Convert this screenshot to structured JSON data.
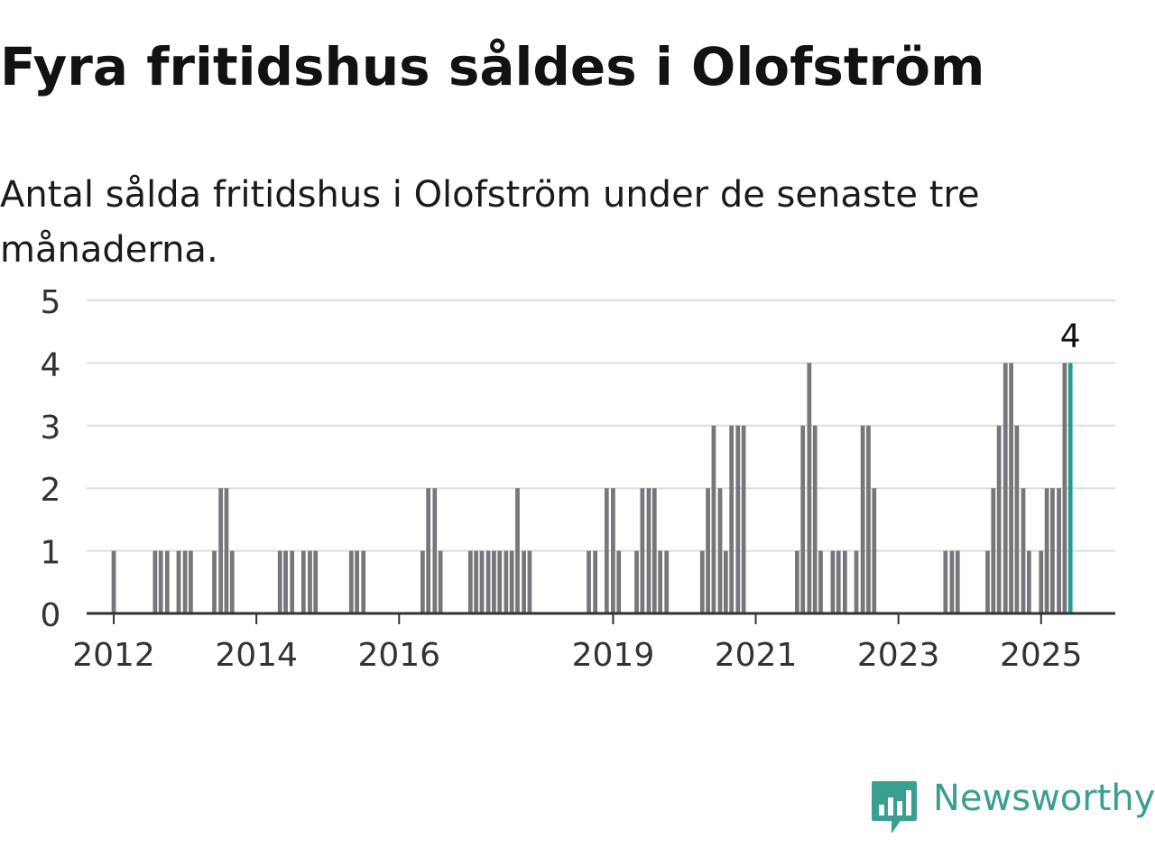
{
  "title": "Fyra fritidshus såldes i Olofström",
  "subtitle": "Antal sålda fritidshus i Olofström under de senaste tre månaderna.",
  "brand": {
    "name": "Newsworthy",
    "color": "#3a9e91"
  },
  "colors": {
    "bar": "#77767b",
    "highlight": "#1e9e8f",
    "grid": "#dddddd",
    "axis": "#333333"
  },
  "chart_data": {
    "type": "bar",
    "ylim": [
      0,
      5
    ],
    "yticks": [
      0,
      1,
      2,
      3,
      4,
      5
    ],
    "xlim": [
      2011.62,
      2026.04
    ],
    "xticks": [
      {
        "x": 2012.0,
        "label": "2012"
      },
      {
        "x": 2014.0,
        "label": "2014"
      },
      {
        "x": 2016.0,
        "label": "2016"
      },
      {
        "x": 2019.0,
        "label": "2019"
      },
      {
        "x": 2021.0,
        "label": "2021"
      },
      {
        "x": 2023.0,
        "label": "2023"
      },
      {
        "x": 2025.0,
        "label": "2025"
      }
    ],
    "bar_width_years": 0.06,
    "grid": true,
    "highlight_label": "4",
    "series": [
      {
        "values": [
          [
            2012.0,
            1
          ],
          [
            2012.58,
            1
          ],
          [
            2012.66,
            1
          ],
          [
            2012.75,
            1
          ],
          [
            2012.91,
            1
          ],
          [
            2013.0,
            1
          ],
          [
            2013.08,
            1
          ],
          [
            2013.41,
            1
          ],
          [
            2013.5,
            2
          ],
          [
            2013.58,
            2
          ],
          [
            2013.66,
            1
          ],
          [
            2014.33,
            1
          ],
          [
            2014.41,
            1
          ],
          [
            2014.5,
            1
          ],
          [
            2014.66,
            1
          ],
          [
            2014.75,
            1
          ],
          [
            2014.83,
            1
          ],
          [
            2015.33,
            1
          ],
          [
            2015.41,
            1
          ],
          [
            2015.5,
            1
          ],
          [
            2016.33,
            1
          ],
          [
            2016.41,
            2
          ],
          [
            2016.5,
            2
          ],
          [
            2016.58,
            1
          ],
          [
            2017.0,
            1
          ],
          [
            2017.08,
            1
          ],
          [
            2017.16,
            1
          ],
          [
            2017.25,
            1
          ],
          [
            2017.33,
            1
          ],
          [
            2017.41,
            1
          ],
          [
            2017.5,
            1
          ],
          [
            2017.58,
            1
          ],
          [
            2017.66,
            2
          ],
          [
            2017.75,
            1
          ],
          [
            2017.83,
            1
          ],
          [
            2018.66,
            1
          ],
          [
            2018.75,
            1
          ],
          [
            2018.91,
            2
          ],
          [
            2019.0,
            2
          ],
          [
            2019.08,
            1
          ],
          [
            2019.33,
            1
          ],
          [
            2019.41,
            2
          ],
          [
            2019.5,
            2
          ],
          [
            2019.58,
            2
          ],
          [
            2019.66,
            1
          ],
          [
            2019.75,
            1
          ],
          [
            2020.25,
            1
          ],
          [
            2020.33,
            2
          ],
          [
            2020.41,
            3
          ],
          [
            2020.5,
            2
          ],
          [
            2020.58,
            1
          ],
          [
            2020.66,
            3
          ],
          [
            2020.75,
            3
          ],
          [
            2020.83,
            3
          ],
          [
            2021.58,
            1
          ],
          [
            2021.66,
            3
          ],
          [
            2021.75,
            4
          ],
          [
            2021.83,
            3
          ],
          [
            2021.91,
            1
          ],
          [
            2022.08,
            1
          ],
          [
            2022.16,
            1
          ],
          [
            2022.25,
            1
          ],
          [
            2022.41,
            1
          ],
          [
            2022.5,
            3
          ],
          [
            2022.58,
            3
          ],
          [
            2022.66,
            2
          ],
          [
            2023.66,
            1
          ],
          [
            2023.75,
            1
          ],
          [
            2023.83,
            1
          ],
          [
            2024.25,
            1
          ],
          [
            2024.33,
            2
          ],
          [
            2024.41,
            3
          ],
          [
            2024.5,
            4
          ],
          [
            2024.58,
            4
          ],
          [
            2024.66,
            3
          ],
          [
            2024.75,
            2
          ],
          [
            2024.83,
            1
          ],
          [
            2025.0,
            1
          ],
          [
            2025.08,
            2
          ],
          [
            2025.16,
            2
          ],
          [
            2025.25,
            2
          ],
          [
            2025.33,
            4
          ],
          [
            2025.41,
            4
          ]
        ]
      }
    ]
  }
}
